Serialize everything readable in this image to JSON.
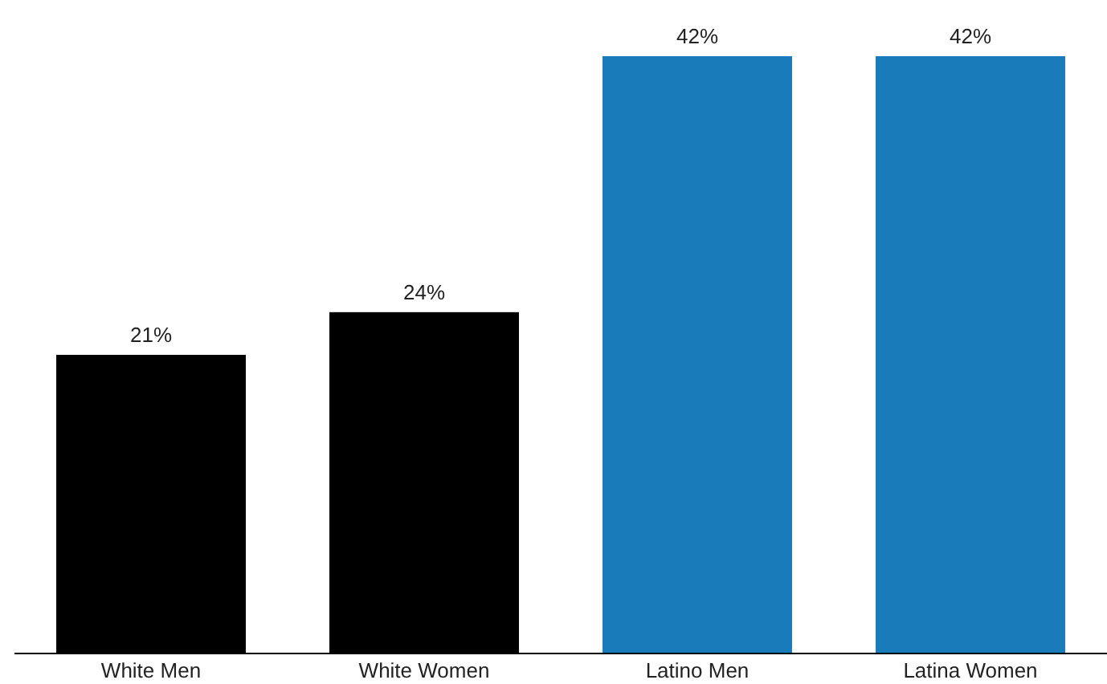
{
  "chart_data": {
    "type": "bar",
    "categories": [
      "White Men",
      "White Women",
      "Latino Men",
      "Latina Women"
    ],
    "values": [
      21,
      24,
      42,
      42
    ],
    "colors": [
      "#000000",
      "#000000",
      "#1a7bbb",
      "#1a7bbb"
    ],
    "value_labels": [
      "21%",
      "24%",
      "42%",
      "42%"
    ],
    "ylim": [
      0,
      42
    ]
  }
}
